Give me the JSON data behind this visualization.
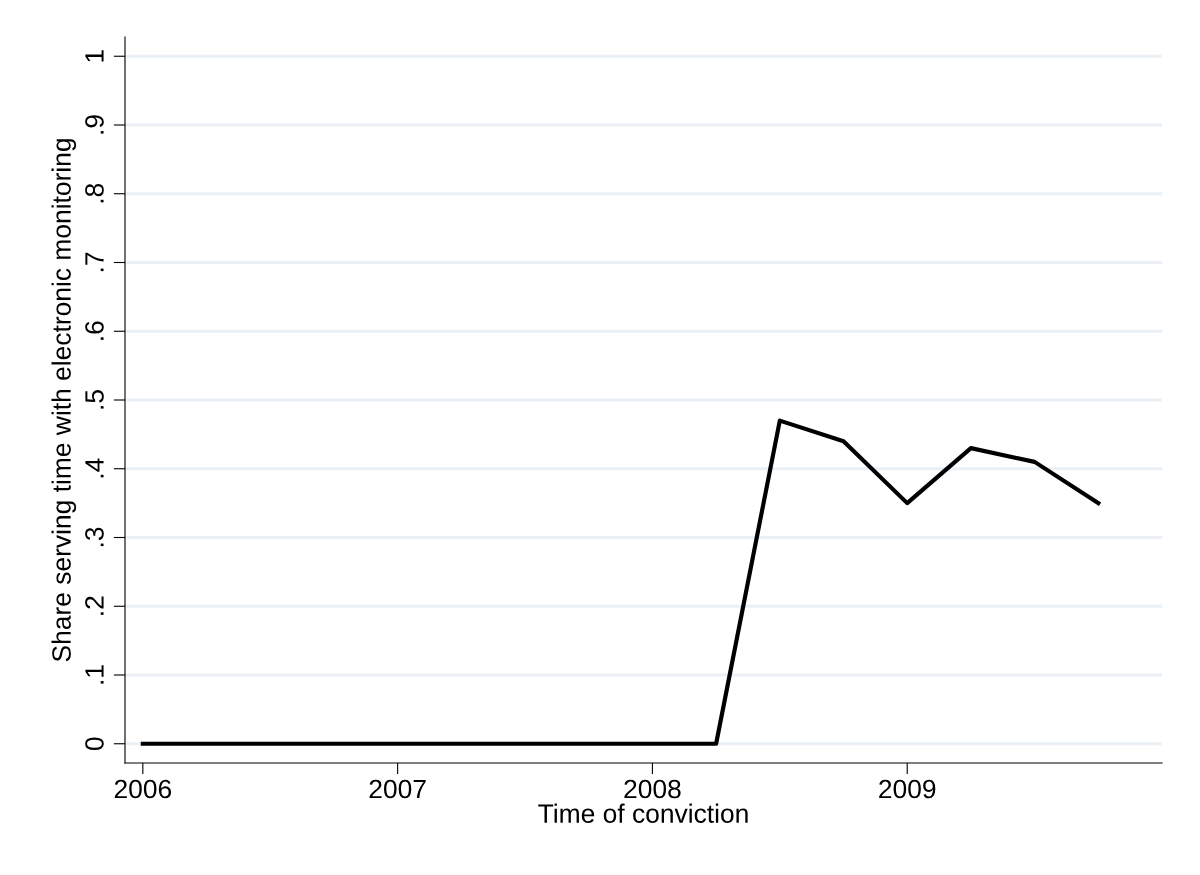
{
  "chart_data": {
    "type": "line",
    "xlabel": "Time of conviction",
    "ylabel": "Share serving time with electronic monitoring",
    "x": [
      2006,
      2006.25,
      2006.5,
      2006.75,
      2007,
      2007.25,
      2007.5,
      2007.75,
      2008,
      2008.25,
      2008.5,
      2008.75,
      2009,
      2009.25,
      2009.5,
      2009.75
    ],
    "series": [
      {
        "color": "#000000",
        "values": [
          0,
          0,
          0,
          0,
          0,
          0,
          0,
          0,
          0,
          0,
          0.47,
          0.44,
          0.35,
          0.43,
          0.41,
          0.35
        ]
      }
    ],
    "xlim": [
      2005.93,
      2010
    ],
    "xticks": [
      2006,
      2007,
      2008,
      2009
    ],
    "ylim": [
      -0.028,
      1.028
    ],
    "yticks": [
      0,
      {
        "value": 0.1,
        "label": ".1"
      },
      {
        "value": 0.2,
        "label": ".2"
      },
      {
        "value": 0.3,
        "label": ".3"
      },
      {
        "value": 0.4,
        "label": ".4"
      },
      {
        "value": 0.5,
        "label": ".5"
      },
      {
        "value": 0.6,
        "label": ".6"
      },
      {
        "value": 0.7,
        "label": ".7"
      },
      {
        "value": 0.8,
        "label": ".8"
      },
      {
        "value": 0.9,
        "label": ".9"
      },
      1
    ],
    "grid": "y",
    "legend": false,
    "marker": "none",
    "line_style": "solid"
  }
}
